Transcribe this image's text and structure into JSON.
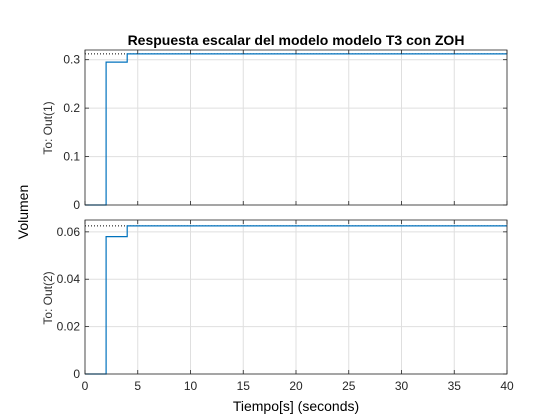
{
  "chart_data": {
    "type": "line",
    "title": "Respuesta escalar del modelo modelo T3 con ZOH",
    "xlabel": "Tiempo[s] (seconds)",
    "ylabel": "Volumen",
    "xlim": [
      0,
      40
    ],
    "xticks": [
      0,
      5,
      10,
      15,
      20,
      25,
      30,
      35,
      40
    ],
    "grid": true,
    "color": "#0072bd",
    "final_value_line_color": "#000000",
    "subplots": [
      {
        "ylabel": "To: Out(1)",
        "ylim": [
          0,
          0.32
        ],
        "yticks": [
          0,
          0.1,
          0.2,
          0.3
        ],
        "ytick_labels": [
          "0",
          "0.1",
          "0.2",
          "0.3"
        ],
        "final_value": 0.312,
        "x": [
          0,
          2,
          2,
          4,
          4,
          40
        ],
        "y": [
          0,
          0,
          0.295,
          0.295,
          0.312,
          0.312
        ]
      },
      {
        "ylabel": "To: Out(2)",
        "ylim": [
          0,
          0.065
        ],
        "yticks": [
          0,
          0.02,
          0.04,
          0.06
        ],
        "ytick_labels": [
          "0",
          "0.02",
          "0.04",
          "0.06"
        ],
        "final_value": 0.0625,
        "x": [
          0,
          2,
          2,
          4,
          4,
          40
        ],
        "y": [
          0,
          0,
          0.058,
          0.058,
          0.0625,
          0.0625
        ]
      }
    ]
  }
}
